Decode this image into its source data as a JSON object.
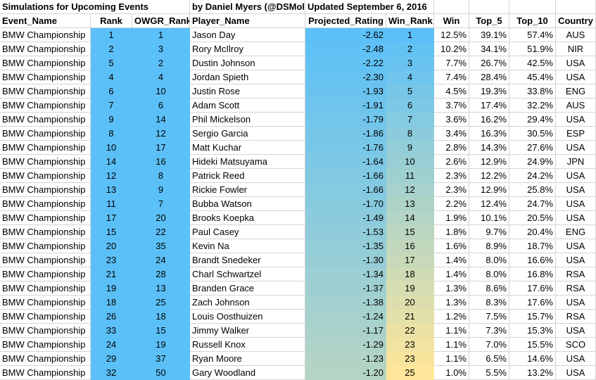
{
  "title_row": {
    "left": "Simulations for Upcoming Events",
    "author": "by Daniel Myers (@DSMol",
    "updated": "Updated  September 6, 2016"
  },
  "headers": [
    "Event_Name",
    "Rank",
    "OWGR_Rank",
    "Player_Name",
    "Projected_Rating",
    "Win_Rank",
    "Win",
    "Top_5",
    "Top_10",
    "Country"
  ],
  "colors": {
    "blue": "#5bc0f8",
    "yellow": "#ffe699",
    "grid": "#d4d4d4"
  },
  "rows": [
    {
      "event": "BMW Championship",
      "rank": "1",
      "owgr": "1",
      "player": "Jason Day",
      "rating": "-2.62",
      "win_rank": "1",
      "win": "12.5%",
      "top5": "39.1%",
      "top10": "57.4%",
      "country": "AUS"
    },
    {
      "event": "BMW Championship",
      "rank": "2",
      "owgr": "3",
      "player": "Rory McIlroy",
      "rating": "-2.48",
      "win_rank": "2",
      "win": "10.2%",
      "top5": "34.1%",
      "top10": "51.9%",
      "country": "NIR"
    },
    {
      "event": "BMW Championship",
      "rank": "5",
      "owgr": "2",
      "player": "Dustin Johnson",
      "rating": "-2.22",
      "win_rank": "3",
      "win": "7.7%",
      "top5": "26.7%",
      "top10": "42.5%",
      "country": "USA"
    },
    {
      "event": "BMW Championship",
      "rank": "4",
      "owgr": "4",
      "player": "Jordan Spieth",
      "rating": "-2.30",
      "win_rank": "4",
      "win": "7.4%",
      "top5": "28.4%",
      "top10": "45.4%",
      "country": "USA"
    },
    {
      "event": "BMW Championship",
      "rank": "6",
      "owgr": "10",
      "player": "Justin Rose",
      "rating": "-1.93",
      "win_rank": "5",
      "win": "4.5%",
      "top5": "19.3%",
      "top10": "33.8%",
      "country": "ENG"
    },
    {
      "event": "BMW Championship",
      "rank": "7",
      "owgr": "6",
      "player": "Adam Scott",
      "rating": "-1.91",
      "win_rank": "6",
      "win": "3.7%",
      "top5": "17.4%",
      "top10": "32.2%",
      "country": "AUS"
    },
    {
      "event": "BMW Championship",
      "rank": "9",
      "owgr": "14",
      "player": "Phil Mickelson",
      "rating": "-1.79",
      "win_rank": "7",
      "win": "3.6%",
      "top5": "16.2%",
      "top10": "29.4%",
      "country": "USA"
    },
    {
      "event": "BMW Championship",
      "rank": "8",
      "owgr": "12",
      "player": "Sergio Garcia",
      "rating": "-1.86",
      "win_rank": "8",
      "win": "3.4%",
      "top5": "16.3%",
      "top10": "30.5%",
      "country": "ESP"
    },
    {
      "event": "BMW Championship",
      "rank": "10",
      "owgr": "17",
      "player": "Matt Kuchar",
      "rating": "-1.76",
      "win_rank": "9",
      "win": "2.8%",
      "top5": "14.3%",
      "top10": "27.6%",
      "country": "USA"
    },
    {
      "event": "BMW Championship",
      "rank": "14",
      "owgr": "16",
      "player": "Hideki Matsuyama",
      "rating": "-1.64",
      "win_rank": "10",
      "win": "2.6%",
      "top5": "12.9%",
      "top10": "24.9%",
      "country": "JPN"
    },
    {
      "event": "BMW Championship",
      "rank": "12",
      "owgr": "8",
      "player": "Patrick Reed",
      "rating": "-1.66",
      "win_rank": "11",
      "win": "2.3%",
      "top5": "12.2%",
      "top10": "24.2%",
      "country": "USA"
    },
    {
      "event": "BMW Championship",
      "rank": "13",
      "owgr": "9",
      "player": "Rickie Fowler",
      "rating": "-1.66",
      "win_rank": "12",
      "win": "2.3%",
      "top5": "12.9%",
      "top10": "25.8%",
      "country": "USA"
    },
    {
      "event": "BMW Championship",
      "rank": "11",
      "owgr": "7",
      "player": "Bubba Watson",
      "rating": "-1.70",
      "win_rank": "13",
      "win": "2.2%",
      "top5": "12.4%",
      "top10": "24.7%",
      "country": "USA"
    },
    {
      "event": "BMW Championship",
      "rank": "17",
      "owgr": "20",
      "player": "Brooks Koepka",
      "rating": "-1.49",
      "win_rank": "14",
      "win": "1.9%",
      "top5": "10.1%",
      "top10": "20.5%",
      "country": "USA"
    },
    {
      "event": "BMW Championship",
      "rank": "15",
      "owgr": "22",
      "player": "Paul Casey",
      "rating": "-1.53",
      "win_rank": "15",
      "win": "1.8%",
      "top5": "9.7%",
      "top10": "20.4%",
      "country": "ENG"
    },
    {
      "event": "BMW Championship",
      "rank": "20",
      "owgr": "35",
      "player": "Kevin Na",
      "rating": "-1.35",
      "win_rank": "16",
      "win": "1.6%",
      "top5": "8.9%",
      "top10": "18.7%",
      "country": "USA"
    },
    {
      "event": "BMW Championship",
      "rank": "23",
      "owgr": "24",
      "player": "Brandt Snedeker",
      "rating": "-1.30",
      "win_rank": "17",
      "win": "1.4%",
      "top5": "8.0%",
      "top10": "16.6%",
      "country": "USA"
    },
    {
      "event": "BMW Championship",
      "rank": "21",
      "owgr": "28",
      "player": "Charl Schwartzel",
      "rating": "-1.34",
      "win_rank": "18",
      "win": "1.4%",
      "top5": "8.0%",
      "top10": "16.8%",
      "country": "RSA"
    },
    {
      "event": "BMW Championship",
      "rank": "19",
      "owgr": "13",
      "player": "Branden Grace",
      "rating": "-1.37",
      "win_rank": "19",
      "win": "1.3%",
      "top5": "8.6%",
      "top10": "17.6%",
      "country": "RSA"
    },
    {
      "event": "BMW Championship",
      "rank": "18",
      "owgr": "25",
      "player": "Zach Johnson",
      "rating": "-1.38",
      "win_rank": "20",
      "win": "1.3%",
      "top5": "8.3%",
      "top10": "17.6%",
      "country": "USA"
    },
    {
      "event": "BMW Championship",
      "rank": "26",
      "owgr": "18",
      "player": "Louis Oosthuizen",
      "rating": "-1.24",
      "win_rank": "21",
      "win": "1.2%",
      "top5": "7.5%",
      "top10": "15.7%",
      "country": "RSA"
    },
    {
      "event": "BMW Championship",
      "rank": "33",
      "owgr": "15",
      "player": "Jimmy Walker",
      "rating": "-1.17",
      "win_rank": "22",
      "win": "1.1%",
      "top5": "7.3%",
      "top10": "15.3%",
      "country": "USA"
    },
    {
      "event": "BMW Championship",
      "rank": "24",
      "owgr": "19",
      "player": "Russell Knox",
      "rating": "-1.29",
      "win_rank": "23",
      "win": "1.1%",
      "top5": "7.0%",
      "top10": "15.5%",
      "country": "SCO"
    },
    {
      "event": "BMW Championship",
      "rank": "29",
      "owgr": "37",
      "player": "Ryan Moore",
      "rating": "-1.23",
      "win_rank": "23",
      "win": "1.1%",
      "top5": "6.5%",
      "top10": "14.6%",
      "country": "USA"
    },
    {
      "event": "BMW Championship",
      "rank": "32",
      "owgr": "50",
      "player": "Gary Woodland",
      "rating": "-1.20",
      "win_rank": "25",
      "win": "1.0%",
      "top5": "5.5%",
      "top10": "13.2%",
      "country": "USA"
    }
  ]
}
